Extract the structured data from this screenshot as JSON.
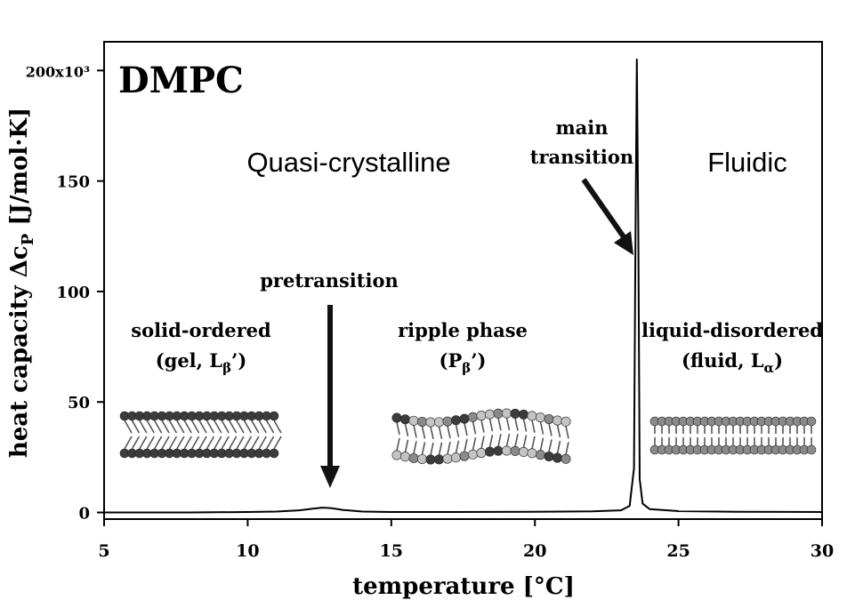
{
  "chart_data": {
    "type": "line",
    "title": "DMPC",
    "xlabel": "temperature [°C]",
    "ylabel": "heat capacity Δc",
    "ylabel_sub": "P",
    "ylabel_units": " [J/mol·K]",
    "xlim": [
      5,
      30
    ],
    "ylim": [
      -3,
      213
    ],
    "x_ticks": [
      5,
      10,
      15,
      20,
      25,
      30
    ],
    "x_tick_labels": [
      "5",
      "10",
      "15",
      "20",
      "25",
      "30"
    ],
    "y_ticks": [
      0,
      50,
      100,
      150,
      200
    ],
    "y_tick_labels": [
      "0",
      "50",
      "100",
      "150",
      "200x10³"
    ],
    "grid": false,
    "series": [
      {
        "x": [
          5,
          8,
          10,
          11,
          11.8,
          12.3,
          12.6,
          12.9,
          13.3,
          14,
          15,
          17,
          20,
          22,
          23,
          23.3,
          23.45,
          23.5,
          23.55,
          23.6,
          23.65,
          23.75,
          24,
          25,
          27,
          30
        ],
        "y": [
          0,
          0,
          0.2,
          0.4,
          1,
          1.8,
          2.2,
          2.0,
          1.2,
          0.4,
          0.2,
          0.2,
          0.3,
          0.5,
          1,
          3,
          20,
          120,
          205,
          130,
          15,
          4,
          1.5,
          0.6,
          0.3,
          0.2
        ]
      }
    ],
    "annotations": {
      "region_left": "Quasi-crystalline",
      "region_right": "Fluidic",
      "main_transition_line1": "main",
      "main_transition_line2": "transition",
      "pretransition": "pretransition",
      "phase_solid_line1": "solid-ordered",
      "phase_solid_line2_prefix": "(gel, L",
      "phase_solid_line2_sub": "β",
      "phase_solid_line2_suffix": "’)",
      "phase_ripple_line1": "ripple phase",
      "phase_ripple_line2_prefix": "(P",
      "phase_ripple_line2_sub": "β",
      "phase_ripple_line2_suffix": "’)",
      "phase_liquid_line1": "liquid-disordered",
      "phase_liquid_line2_prefix": "(fluid, L",
      "phase_liquid_line2_sub": "α",
      "phase_liquid_line2_suffix": ")"
    },
    "colors": {
      "line": "#000000",
      "head_dark": "#3c3c3c",
      "head_mid": "#8a8a8a",
      "head_light": "#c4c4c4"
    }
  }
}
